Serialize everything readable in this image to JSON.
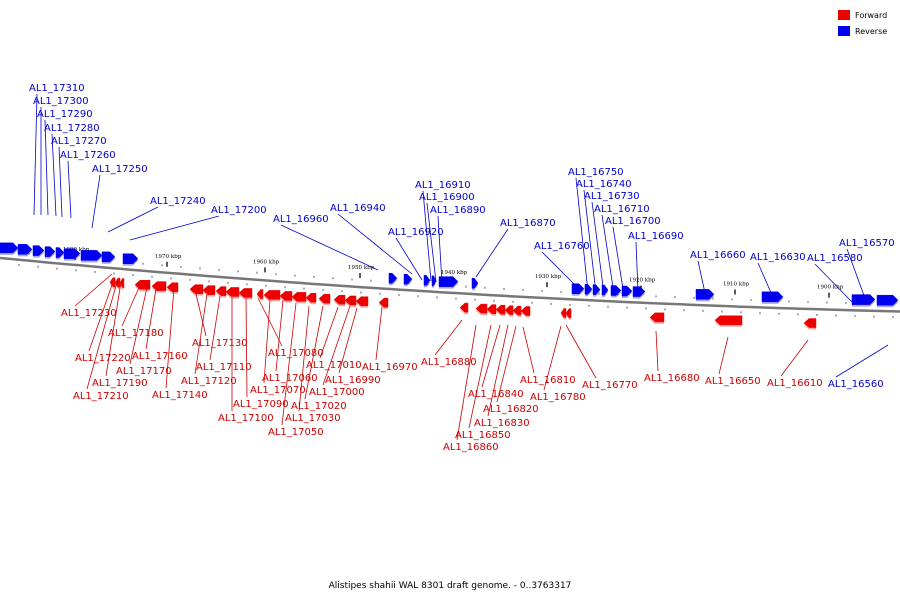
{
  "legend": [
    {
      "label": "Forward",
      "color": "#ee0000"
    },
    {
      "label": "Reverse",
      "color": "#0000ee"
    }
  ],
  "caption": "Alistipes shahii WAL 8301 draft genome. - 0..3763317",
  "ticks": [
    "1980 kbp",
    "1970 kbp",
    "1960 kbp",
    "1950 kbp",
    "1940 kbp",
    "1930 kbp",
    "1920 kbp",
    "1910 kbp",
    "1900 kbp"
  ],
  "reverse_genes": [
    "AL1_17310",
    "AL1_17300",
    "AL1_17290",
    "AL1_17280",
    "AL1_17270",
    "AL1_17260",
    "AL1_17250",
    "AL1_17240",
    "AL1_17200",
    "AL1_16960",
    "AL1_16940",
    "AL1_16920",
    "AL1_16910",
    "AL1_16900",
    "AL1_16890",
    "AL1_16870",
    "AL1_16760",
    "AL1_16750",
    "AL1_16740",
    "AL1_16730",
    "AL1_16710",
    "AL1_16700",
    "AL1_16690",
    "AL1_16660",
    "AL1_16630",
    "AL1_16580",
    "AL1_16570",
    "AL1_16560"
  ],
  "forward_genes": [
    "AL1_17230",
    "AL1_17220",
    "AL1_17210",
    "AL1_17190",
    "AL1_17180",
    "AL1_17170",
    "AL1_17160",
    "AL1_17140",
    "AL1_17130",
    "AL1_17120",
    "AL1_17110",
    "AL1_17100",
    "AL1_17090",
    "AL1_17080",
    "AL1_17070",
    "AL1_17060",
    "AL1_17050",
    "AL1_17030",
    "AL1_17020",
    "AL1_17010",
    "AL1_17000",
    "AL1_16990",
    "AL1_16970",
    "AL1_16880",
    "AL1_16860",
    "AL1_16850",
    "AL1_16840",
    "AL1_16830",
    "AL1_16820",
    "AL1_16810",
    "AL1_16780",
    "AL1_16770",
    "AL1_16680",
    "AL1_16650",
    "AL1_16610"
  ]
}
